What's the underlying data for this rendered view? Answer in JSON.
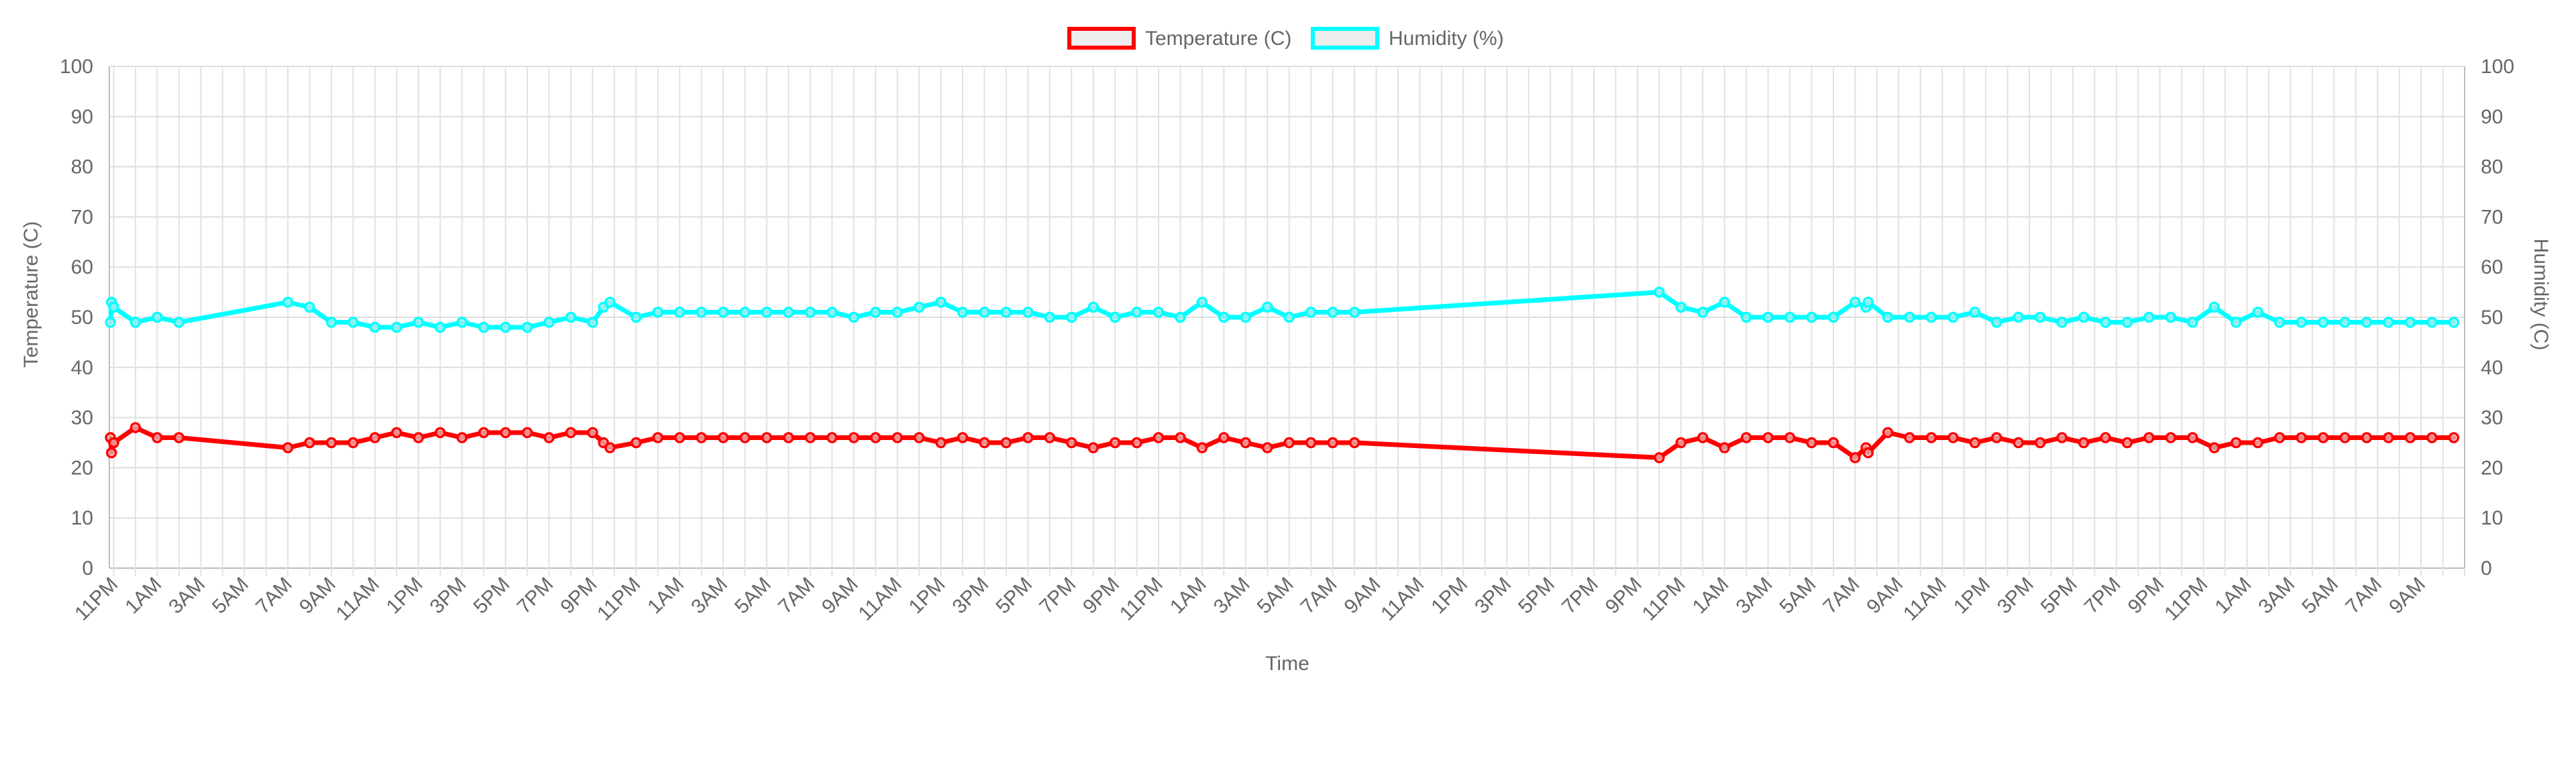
{
  "chart_data": {
    "type": "line",
    "xlabel": "Time",
    "ylabel": "Temperature (C)",
    "y2label": "Humidity (C)",
    "ylim": [
      0,
      100
    ],
    "y2lim": [
      0,
      100
    ],
    "yticks": [
      0,
      10,
      20,
      30,
      40,
      50,
      60,
      70,
      80,
      90,
      100
    ],
    "grid": true,
    "legend_position": "top-center",
    "x_hour_range": [
      22.8,
      131.0
    ],
    "x_tick_labels": [
      {
        "h": 23,
        "label": "11PM"
      },
      {
        "h": 25,
        "label": "1AM"
      },
      {
        "h": 27,
        "label": "3AM"
      },
      {
        "h": 29,
        "label": "5AM"
      },
      {
        "h": 31,
        "label": "7AM"
      },
      {
        "h": 33,
        "label": "9AM"
      },
      {
        "h": 35,
        "label": "11AM"
      },
      {
        "h": 37,
        "label": "1PM"
      },
      {
        "h": 39,
        "label": "3PM"
      },
      {
        "h": 41,
        "label": "5PM"
      },
      {
        "h": 43,
        "label": "7PM"
      },
      {
        "h": 45,
        "label": "9PM"
      },
      {
        "h": 47,
        "label": "11PM"
      },
      {
        "h": 49,
        "label": "1AM"
      },
      {
        "h": 51,
        "label": "3AM"
      },
      {
        "h": 53,
        "label": "5AM"
      },
      {
        "h": 55,
        "label": "7AM"
      },
      {
        "h": 57,
        "label": "9AM"
      },
      {
        "h": 59,
        "label": "11AM"
      },
      {
        "h": 61,
        "label": "1PM"
      },
      {
        "h": 63,
        "label": "3PM"
      },
      {
        "h": 65,
        "label": "5PM"
      },
      {
        "h": 67,
        "label": "7PM"
      },
      {
        "h": 69,
        "label": "9PM"
      },
      {
        "h": 71,
        "label": "11PM"
      },
      {
        "h": 73,
        "label": "1AM"
      },
      {
        "h": 75,
        "label": "3AM"
      },
      {
        "h": 77,
        "label": "5AM"
      },
      {
        "h": 79,
        "label": "7AM"
      },
      {
        "h": 81,
        "label": "9AM"
      },
      {
        "h": 83,
        "label": "11AM"
      },
      {
        "h": 85,
        "label": "1PM"
      },
      {
        "h": 87,
        "label": "3PM"
      },
      {
        "h": 89,
        "label": "5PM"
      },
      {
        "h": 91,
        "label": "7PM"
      },
      {
        "h": 93,
        "label": "9PM"
      },
      {
        "h": 95,
        "label": "11PM"
      },
      {
        "h": 97,
        "label": "1AM"
      },
      {
        "h": 99,
        "label": "3AM"
      },
      {
        "h": 101,
        "label": "5AM"
      },
      {
        "h": 103,
        "label": "7AM"
      },
      {
        "h": 105,
        "label": "9AM"
      },
      {
        "h": 107,
        "label": "11AM"
      },
      {
        "h": 109,
        "label": "1PM"
      },
      {
        "h": 111,
        "label": "3PM"
      },
      {
        "h": 113,
        "label": "5PM"
      },
      {
        "h": 115,
        "label": "7PM"
      },
      {
        "h": 117,
        "label": "9PM"
      },
      {
        "h": 119,
        "label": "11PM"
      },
      {
        "h": 121,
        "label": "1AM"
      },
      {
        "h": 123,
        "label": "3AM"
      },
      {
        "h": 125,
        "label": "5AM"
      },
      {
        "h": 127,
        "label": "7AM"
      },
      {
        "h": 129,
        "label": "9AM"
      }
    ],
    "series": [
      {
        "name": "Temperature (C)",
        "axis": "left",
        "color": "#ff0000",
        "points": [
          [
            22.85,
            26
          ],
          [
            22.9,
            23
          ],
          [
            23.0,
            25
          ],
          [
            24.0,
            28
          ],
          [
            25.0,
            26
          ],
          [
            26.0,
            26
          ],
          [
            31.0,
            24
          ],
          [
            32.0,
            25
          ],
          [
            33.0,
            25
          ],
          [
            34.0,
            25
          ],
          [
            35.0,
            26
          ],
          [
            36.0,
            27
          ],
          [
            37.0,
            26
          ],
          [
            38.0,
            27
          ],
          [
            39.0,
            26
          ],
          [
            40.0,
            27
          ],
          [
            41.0,
            27
          ],
          [
            42.0,
            27
          ],
          [
            43.0,
            26
          ],
          [
            44.0,
            27
          ],
          [
            45.0,
            27
          ],
          [
            45.5,
            25
          ],
          [
            45.8,
            24
          ],
          [
            47.0,
            25
          ],
          [
            48.0,
            26
          ],
          [
            49.0,
            26
          ],
          [
            50.0,
            26
          ],
          [
            51.0,
            26
          ],
          [
            52.0,
            26
          ],
          [
            53.0,
            26
          ],
          [
            54.0,
            26
          ],
          [
            55.0,
            26
          ],
          [
            56.0,
            26
          ],
          [
            57.0,
            26
          ],
          [
            58.0,
            26
          ],
          [
            59.0,
            26
          ],
          [
            60.0,
            26
          ],
          [
            61.0,
            25
          ],
          [
            62.0,
            26
          ],
          [
            63.0,
            25
          ],
          [
            64.0,
            25
          ],
          [
            65.0,
            26
          ],
          [
            66.0,
            26
          ],
          [
            67.0,
            25
          ],
          [
            68.0,
            24
          ],
          [
            69.0,
            25
          ],
          [
            70.0,
            25
          ],
          [
            71.0,
            26
          ],
          [
            72.0,
            26
          ],
          [
            73.0,
            24
          ],
          [
            74.0,
            26
          ],
          [
            75.0,
            25
          ],
          [
            76.0,
            24
          ],
          [
            77.0,
            25
          ],
          [
            78.0,
            25
          ],
          [
            79.0,
            25
          ],
          [
            80.0,
            25
          ],
          [
            94.0,
            22
          ],
          [
            95.0,
            25
          ],
          [
            96.0,
            26
          ],
          [
            97.0,
            24
          ],
          [
            98.0,
            26
          ],
          [
            99.0,
            26
          ],
          [
            100.0,
            26
          ],
          [
            101.0,
            25
          ],
          [
            102.0,
            25
          ],
          [
            103.0,
            22
          ],
          [
            103.5,
            24
          ],
          [
            103.6,
            23
          ],
          [
            104.5,
            27
          ],
          [
            105.5,
            26
          ],
          [
            106.5,
            26
          ],
          [
            107.5,
            26
          ],
          [
            108.5,
            25
          ],
          [
            109.5,
            26
          ],
          [
            110.5,
            25
          ],
          [
            111.5,
            25
          ],
          [
            112.5,
            26
          ],
          [
            113.5,
            25
          ],
          [
            114.5,
            26
          ],
          [
            115.5,
            25
          ],
          [
            116.5,
            26
          ],
          [
            117.5,
            26
          ],
          [
            118.5,
            26
          ],
          [
            119.5,
            24
          ],
          [
            120.5,
            25
          ],
          [
            121.5,
            25
          ],
          [
            122.5,
            26
          ],
          [
            123.5,
            26
          ],
          [
            124.5,
            26
          ],
          [
            125.5,
            26
          ],
          [
            126.5,
            26
          ],
          [
            127.5,
            26
          ],
          [
            128.5,
            26
          ],
          [
            129.5,
            26
          ],
          [
            130.5,
            26
          ]
        ]
      },
      {
        "name": "Humidity (%)",
        "axis": "right",
        "color": "#00ffff",
        "points": [
          [
            22.85,
            49
          ],
          [
            22.9,
            53
          ],
          [
            23.0,
            52
          ],
          [
            24.0,
            49
          ],
          [
            25.0,
            50
          ],
          [
            26.0,
            49
          ],
          [
            31.0,
            53
          ],
          [
            32.0,
            52
          ],
          [
            33.0,
            49
          ],
          [
            34.0,
            49
          ],
          [
            35.0,
            48
          ],
          [
            36.0,
            48
          ],
          [
            37.0,
            49
          ],
          [
            38.0,
            48
          ],
          [
            39.0,
            49
          ],
          [
            40.0,
            48
          ],
          [
            41.0,
            48
          ],
          [
            42.0,
            48
          ],
          [
            43.0,
            49
          ],
          [
            44.0,
            50
          ],
          [
            45.0,
            49
          ],
          [
            45.5,
            52
          ],
          [
            45.8,
            53
          ],
          [
            47.0,
            50
          ],
          [
            48.0,
            51
          ],
          [
            49.0,
            51
          ],
          [
            50.0,
            51
          ],
          [
            51.0,
            51
          ],
          [
            52.0,
            51
          ],
          [
            53.0,
            51
          ],
          [
            54.0,
            51
          ],
          [
            55.0,
            51
          ],
          [
            56.0,
            51
          ],
          [
            57.0,
            50
          ],
          [
            58.0,
            51
          ],
          [
            59.0,
            51
          ],
          [
            60.0,
            52
          ],
          [
            61.0,
            53
          ],
          [
            62.0,
            51
          ],
          [
            63.0,
            51
          ],
          [
            64.0,
            51
          ],
          [
            65.0,
            51
          ],
          [
            66.0,
            50
          ],
          [
            67.0,
            50
          ],
          [
            68.0,
            52
          ],
          [
            69.0,
            50
          ],
          [
            70.0,
            51
          ],
          [
            71.0,
            51
          ],
          [
            72.0,
            50
          ],
          [
            73.0,
            53
          ],
          [
            74.0,
            50
          ],
          [
            75.0,
            50
          ],
          [
            76.0,
            52
          ],
          [
            77.0,
            50
          ],
          [
            78.0,
            51
          ],
          [
            79.0,
            51
          ],
          [
            80.0,
            51
          ],
          [
            94.0,
            55
          ],
          [
            95.0,
            52
          ],
          [
            96.0,
            51
          ],
          [
            97.0,
            53
          ],
          [
            98.0,
            50
          ],
          [
            99.0,
            50
          ],
          [
            100.0,
            50
          ],
          [
            101.0,
            50
          ],
          [
            102.0,
            50
          ],
          [
            103.0,
            53
          ],
          [
            103.5,
            52
          ],
          [
            103.6,
            53
          ],
          [
            104.5,
            50
          ],
          [
            105.5,
            50
          ],
          [
            106.5,
            50
          ],
          [
            107.5,
            50
          ],
          [
            108.5,
            51
          ],
          [
            109.5,
            49
          ],
          [
            110.5,
            50
          ],
          [
            111.5,
            50
          ],
          [
            112.5,
            49
          ],
          [
            113.5,
            50
          ],
          [
            114.5,
            49
          ],
          [
            115.5,
            49
          ],
          [
            116.5,
            50
          ],
          [
            117.5,
            50
          ],
          [
            118.5,
            49
          ],
          [
            119.5,
            52
          ],
          [
            120.5,
            49
          ],
          [
            121.5,
            51
          ],
          [
            122.5,
            49
          ],
          [
            123.5,
            49
          ],
          [
            124.5,
            49
          ],
          [
            125.5,
            49
          ],
          [
            126.5,
            49
          ],
          [
            127.5,
            49
          ],
          [
            128.5,
            49
          ],
          [
            129.5,
            49
          ],
          [
            130.5,
            49
          ]
        ]
      }
    ]
  }
}
